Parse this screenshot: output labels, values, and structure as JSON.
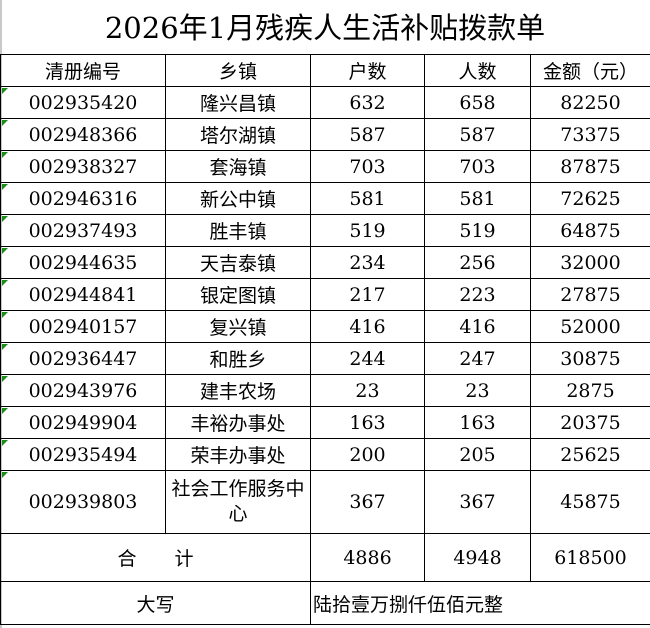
{
  "title": "2026年1月残疾人生活补贴拨款单",
  "headers": [
    "清册编号",
    "乡镇",
    "户数",
    "人数",
    "金额（元）"
  ],
  "rows": [
    [
      "002935420",
      "隆兴昌镇",
      "632",
      "658",
      "82250"
    ],
    [
      "002948366",
      "塔尔湖镇",
      "587",
      "587",
      "73375"
    ],
    [
      "002938327",
      "套海镇",
      "703",
      "703",
      "87875"
    ],
    [
      "002946316",
      "新公中镇",
      "581",
      "581",
      "72625"
    ],
    [
      "002937493",
      "胜丰镇",
      "519",
      "519",
      "64875"
    ],
    [
      "002944635",
      "天吉泰镇",
      "234",
      "256",
      "32000"
    ],
    [
      "002944841",
      "银定图镇",
      "217",
      "223",
      "27875"
    ],
    [
      "002940157",
      "复兴镇",
      "416",
      "416",
      "52000"
    ],
    [
      "002936447",
      "和胜乡",
      "244",
      "247",
      "30875"
    ],
    [
      "002943976",
      "建丰农场",
      "23",
      "23",
      "2875"
    ],
    [
      "002949904",
      "丰裕办事处",
      "163",
      "163",
      "20375"
    ],
    [
      "002935494",
      "荣丰办事处",
      "200",
      "205",
      "25625"
    ],
    [
      "002939803",
      "社会工作服务中心",
      "367",
      "367",
      "45875"
    ]
  ],
  "total": {
    "label": "合　　计",
    "households": "4886",
    "people": "4948",
    "amount": "618500"
  },
  "capital": {
    "label": "大写",
    "value": "陆拾壹万捌仟伍佰元整"
  },
  "colors": {
    "error_indicator": "#1a8a1a",
    "border": "#000000"
  }
}
